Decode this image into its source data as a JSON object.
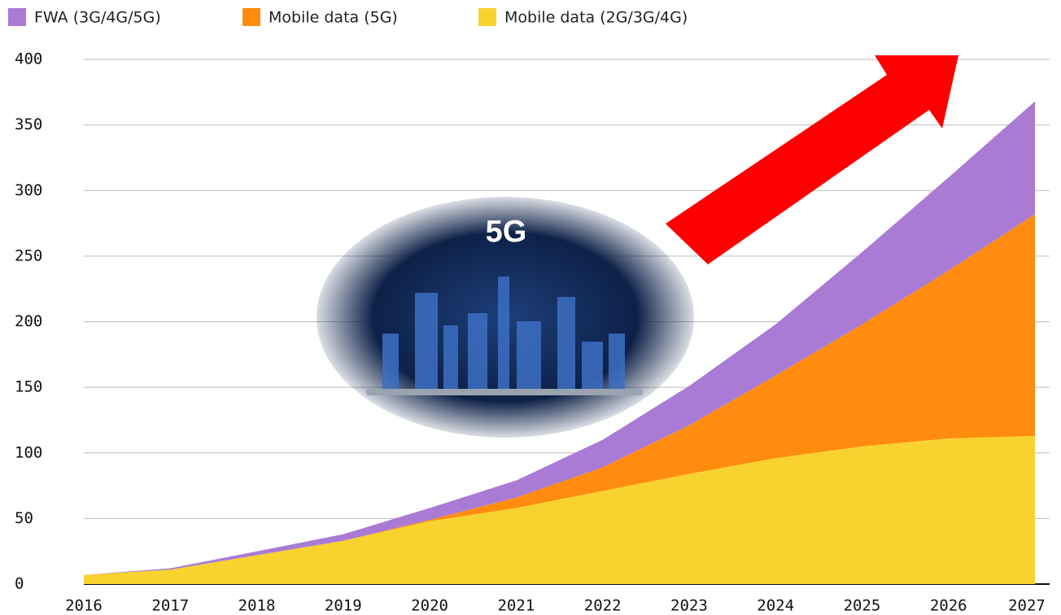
{
  "chart_data": {
    "type": "stacked_area",
    "categories": [
      "2016",
      "2017",
      "2018",
      "2019",
      "2020",
      "2021",
      "2022",
      "2023",
      "2024",
      "2025",
      "2026",
      "2027"
    ],
    "series": [
      {
        "name": "FWA (3G/4G/5G)",
        "color": "#a97bd4",
        "values": [
          0,
          1,
          3,
          5,
          9,
          13,
          21,
          30,
          39,
          55,
          71,
          86
        ]
      },
      {
        "name": "Mobile data (5G)",
        "color": "#ff8c0f",
        "values": [
          0,
          0,
          0,
          0,
          1,
          8,
          18,
          37,
          63,
          93,
          128,
          169
        ]
      },
      {
        "name": "Mobile data (2G/3G/4G)",
        "color": "#f8d32f",
        "values": [
          7,
          11,
          22,
          33,
          48,
          58,
          71,
          84,
          96,
          105,
          111,
          113
        ]
      }
    ],
    "ylim": [
      0,
      400
    ],
    "yticks": [
      0,
      50,
      100,
      150,
      200,
      250,
      300,
      350,
      400
    ],
    "grid": true,
    "annotation": "5G"
  }
}
